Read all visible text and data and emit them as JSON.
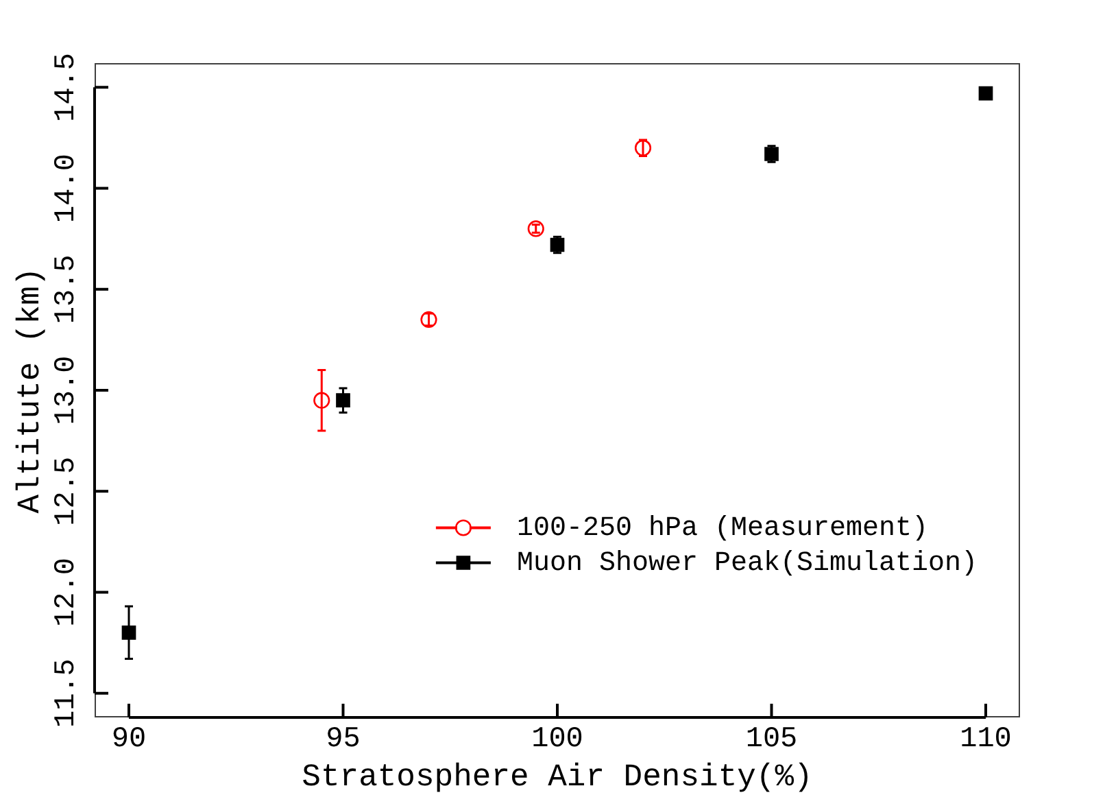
{
  "chart_data": {
    "type": "scatter",
    "xlabel": "Stratosphere Air Density(%)",
    "ylabel": "Altitute (km)",
    "xlim": [
      89.2,
      110.8
    ],
    "xticks": [
      90,
      95,
      100,
      105,
      110
    ],
    "ylim": [
      11.38,
      14.62
    ],
    "yticks": [
      11.5,
      {
        "value": 12,
        "label": "12.0"
      },
      12.5,
      {
        "value": 13,
        "label": "13.0"
      },
      13.5,
      {
        "value": 14,
        "label": "14.0"
      },
      14.5
    ],
    "grid": false,
    "legend": "bottom right",
    "series": [
      {
        "name": "100-250 hPa (Measurement)",
        "color": "#ff0000",
        "marker": "circle",
        "x": [
          94.5,
          97,
          99.5,
          102
        ],
        "values": [
          12.95,
          13.35,
          13.8,
          14.2
        ],
        "errors": [
          0.15,
          0.03,
          0.02,
          0.04
        ]
      },
      {
        "name": "Muon Shower Peak(Simulation)",
        "color": "#000000",
        "marker": "square",
        "x": [
          90,
          95,
          100,
          105,
          110
        ],
        "values": [
          11.8,
          12.95,
          13.72,
          14.17,
          14.47
        ],
        "errors": [
          0.13,
          0.06,
          0.04,
          0.04,
          null
        ]
      }
    ]
  }
}
